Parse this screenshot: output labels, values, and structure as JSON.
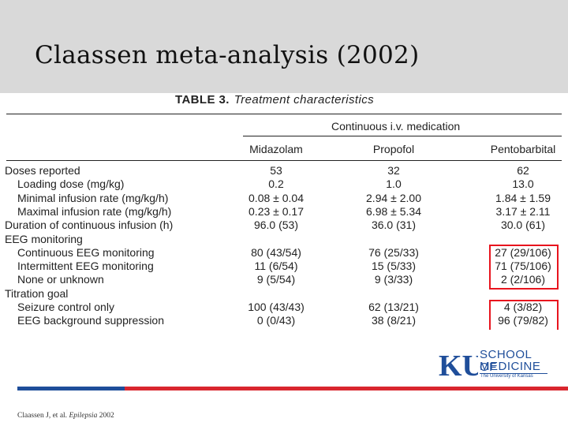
{
  "slide": {
    "title": "Claassen meta-analysis (2002)",
    "citation_prefix": "Claassen J, et al. ",
    "citation_journal": "Epilepsia",
    "citation_year": " 2002"
  },
  "table": {
    "label": "TABLE 3.",
    "caption": "Treatment characteristics",
    "group_header": "Continuous i.v. medication",
    "columns": [
      "Midazolam",
      "Propofol",
      "Pentobarbital"
    ],
    "rows": [
      {
        "label": "Doses reported",
        "indent": false,
        "values": [
          "53",
          "32",
          "62"
        ]
      },
      {
        "label": "Loading dose (mg/kg)",
        "indent": true,
        "values": [
          "0.2",
          "1.0",
          "13.0"
        ]
      },
      {
        "label": "Minimal infusion rate (mg/kg/h)",
        "indent": true,
        "values": [
          "0.08 ± 0.04",
          "2.94 ± 2.00",
          "1.84 ± 1.59"
        ]
      },
      {
        "label": "Maximal infusion rate (mg/kg/h)",
        "indent": true,
        "values": [
          "0.23 ± 0.17",
          "6.98 ± 5.34",
          "3.17 ± 2.11"
        ]
      },
      {
        "label": "Duration of continuous infusion (h)",
        "indent": false,
        "values": [
          "96.0 (53)",
          "36.0 (31)",
          "30.0 (61)"
        ]
      },
      {
        "label": "EEG monitoring",
        "indent": false,
        "values": [
          "",
          "",
          ""
        ]
      },
      {
        "label": "Continuous EEG monitoring",
        "indent": true,
        "values": [
          "80 (43/54)",
          "76 (25/33)",
          "27 (29/106)"
        ]
      },
      {
        "label": "Intermittent EEG monitoring",
        "indent": true,
        "values": [
          "11 (6/54)",
          "15 (5/33)",
          "71 (75/106)"
        ]
      },
      {
        "label": "None or unknown",
        "indent": true,
        "values": [
          "9 (5/54)",
          "9 (3/33)",
          "2 (2/106)"
        ]
      },
      {
        "label": "Titration goal",
        "indent": false,
        "values": [
          "",
          "",
          ""
        ]
      },
      {
        "label": "Seizure control only",
        "indent": true,
        "values": [
          "100 (43/43)",
          "62 (13/21)",
          "4 (3/82)"
        ]
      },
      {
        "label": "EEG background suppression",
        "indent": true,
        "values": [
          "0 (0/43)",
          "38 (8/21)",
          "96 (79/82)"
        ]
      }
    ]
  },
  "logo": {
    "line1": "SCHOOL OF",
    "line2": "MEDICINE",
    "sub": "The University of Kansas",
    "mark": "KU",
    "brand_color": "#1f4e9a"
  },
  "colors": {
    "highlight": "#e8141e",
    "accent_blue": "#1f4e9a",
    "accent_red": "#d9262e",
    "title_band": "#d9d9d9"
  }
}
